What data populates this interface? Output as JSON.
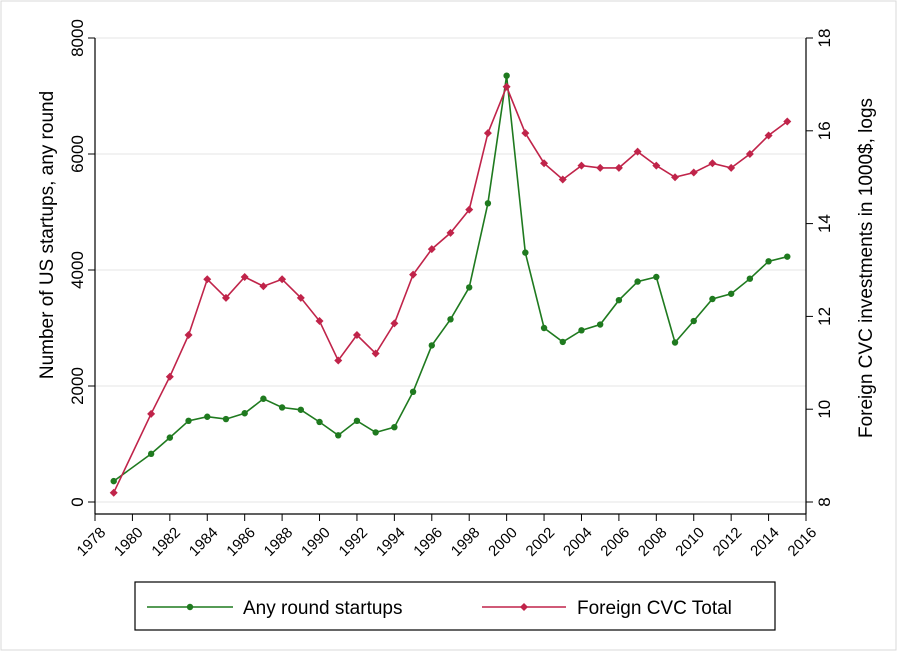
{
  "chart_data": {
    "type": "line",
    "title": "",
    "xlabel": "",
    "ylabel_left": "Number of US startups, any round",
    "ylabel_right": "Foreign CVC investments in 1000$, logs",
    "x_ticks": [
      "1978",
      "1980",
      "1982",
      "1984",
      "1986",
      "1988",
      "1990",
      "1992",
      "1994",
      "1996",
      "1998",
      "2000",
      "2002",
      "2004",
      "2006",
      "2008",
      "2010",
      "2012",
      "2014",
      "2016"
    ],
    "xlim": [
      1978,
      2016
    ],
    "y_left_ticks": [
      "0",
      "2000",
      "4000",
      "6000",
      "8000"
    ],
    "y_left_lim": [
      0,
      8000
    ],
    "y_right_ticks": [
      "8",
      "10",
      "12",
      "14",
      "16",
      "18"
    ],
    "y_right_lim": [
      8,
      18
    ],
    "grid": true,
    "legend_position": "bottom",
    "series": [
      {
        "name": "Any round startups",
        "axis": "left",
        "color": "#1f7a1f",
        "points": [
          [
            1979,
            360
          ],
          [
            1981,
            830
          ],
          [
            1982,
            1110
          ],
          [
            1983,
            1400
          ],
          [
            1984,
            1470
          ],
          [
            1985,
            1430
          ],
          [
            1986,
            1530
          ],
          [
            1987,
            1780
          ],
          [
            1988,
            1630
          ],
          [
            1989,
            1590
          ],
          [
            1990,
            1380
          ],
          [
            1991,
            1150
          ],
          [
            1992,
            1400
          ],
          [
            1993,
            1200
          ],
          [
            1994,
            1290
          ],
          [
            1995,
            1900
          ],
          [
            1996,
            2700
          ],
          [
            1997,
            3150
          ],
          [
            1998,
            3700
          ],
          [
            1999,
            5150
          ],
          [
            2000,
            7350
          ],
          [
            2001,
            4300
          ],
          [
            2002,
            3000
          ],
          [
            2003,
            2760
          ],
          [
            2004,
            2960
          ],
          [
            2005,
            3060
          ],
          [
            2006,
            3480
          ],
          [
            2007,
            3800
          ],
          [
            2008,
            3880
          ],
          [
            2009,
            2750
          ],
          [
            2010,
            3120
          ],
          [
            2011,
            3500
          ],
          [
            2012,
            3590
          ],
          [
            2013,
            3850
          ],
          [
            2014,
            4150
          ],
          [
            2015,
            4230
          ]
        ]
      },
      {
        "name": "Foreign CVC Total",
        "axis": "right",
        "color": "#c0244a",
        "points": [
          [
            1979,
            8.2
          ],
          [
            1981,
            9.9
          ],
          [
            1982,
            10.7
          ],
          [
            1983,
            11.6
          ],
          [
            1984,
            12.8
          ],
          [
            1985,
            12.4
          ],
          [
            1986,
            12.85
          ],
          [
            1987,
            12.65
          ],
          [
            1988,
            12.8
          ],
          [
            1989,
            12.4
          ],
          [
            1990,
            11.9
          ],
          [
            1991,
            11.05
          ],
          [
            1992,
            11.6
          ],
          [
            1993,
            11.2
          ],
          [
            1994,
            11.85
          ],
          [
            1995,
            12.9
          ],
          [
            1996,
            13.45
          ],
          [
            1997,
            13.8
          ],
          [
            1998,
            14.3
          ],
          [
            1999,
            15.95
          ],
          [
            2000,
            16.95
          ],
          [
            2001,
            15.95
          ],
          [
            2002,
            15.3
          ],
          [
            2003,
            14.95
          ],
          [
            2004,
            15.25
          ],
          [
            2005,
            15.2
          ],
          [
            2006,
            15.2
          ],
          [
            2007,
            15.55
          ],
          [
            2008,
            15.25
          ],
          [
            2009,
            15.0
          ],
          [
            2010,
            15.1
          ],
          [
            2011,
            15.3
          ],
          [
            2012,
            15.2
          ],
          [
            2013,
            15.5
          ],
          [
            2014,
            15.9
          ],
          [
            2015,
            16.2
          ]
        ]
      }
    ]
  }
}
